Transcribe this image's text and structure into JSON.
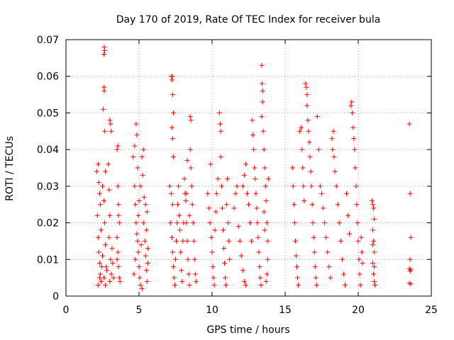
{
  "chart_data": {
    "type": "scatter",
    "title": "Day 170 of 2019, Rate Of TEC Index for receiver bula",
    "xlabel": "GPS time / hours",
    "ylabel": "ROTI / TECUs",
    "xlim": [
      0,
      25
    ],
    "ylim": [
      0,
      0.07
    ],
    "xticks": [
      0,
      5,
      10,
      15,
      20,
      25
    ],
    "xtick_labels": [
      "0",
      "5",
      "10",
      "15",
      "20",
      "25"
    ],
    "yticks": [
      0,
      0.01,
      0.02,
      0.03,
      0.04,
      0.05,
      0.06,
      0.07
    ],
    "ytick_labels": [
      "0",
      "0.01",
      "0.02",
      "0.03",
      "0.04",
      "0.05",
      "0.06",
      "0.07"
    ],
    "grid": true,
    "marker": "+",
    "series": [
      {
        "name": "ROTI",
        "color": "#ff0000",
        "points": [
          [
            2.1,
            0.034
          ],
          [
            2.2,
            0.036
          ],
          [
            2.25,
            0.031
          ],
          [
            2.3,
            0.028
          ],
          [
            2.15,
            0.022
          ],
          [
            2.2,
            0.016
          ],
          [
            2.25,
            0.012
          ],
          [
            2.3,
            0.009
          ],
          [
            2.35,
            0.006
          ],
          [
            2.4,
            0.004
          ],
          [
            2.2,
            0.003
          ],
          [
            2.3,
            0.005
          ],
          [
            2.45,
            0.008
          ],
          [
            2.5,
            0.011
          ],
          [
            2.4,
            0.018
          ],
          [
            2.35,
            0.025
          ],
          [
            2.5,
            0.03
          ],
          [
            2.6,
            0.066
          ],
          [
            2.62,
            0.068
          ],
          [
            2.65,
            0.067
          ],
          [
            2.6,
            0.057
          ],
          [
            2.62,
            0.056
          ],
          [
            2.55,
            0.051
          ],
          [
            2.65,
            0.045
          ],
          [
            2.7,
            0.034
          ],
          [
            2.6,
            0.026
          ],
          [
            2.65,
            0.02
          ],
          [
            2.7,
            0.014
          ],
          [
            2.75,
            0.008
          ],
          [
            2.6,
            0.005
          ],
          [
            2.7,
            0.003
          ],
          [
            2.8,
            0.007
          ],
          [
            2.9,
            0.036
          ],
          [
            2.95,
            0.029
          ],
          [
            3.0,
            0.048
          ],
          [
            3.05,
            0.047
          ],
          [
            3.1,
            0.045
          ],
          [
            3.0,
            0.022
          ],
          [
            2.95,
            0.016
          ],
          [
            3.05,
            0.01
          ],
          [
            3.1,
            0.006
          ],
          [
            3.0,
            0.004
          ],
          [
            3.15,
            0.013
          ],
          [
            3.2,
            0.009
          ],
          [
            3.25,
            0.005
          ],
          [
            3.5,
            0.04
          ],
          [
            3.55,
            0.041
          ],
          [
            3.55,
            0.03
          ],
          [
            3.6,
            0.025
          ],
          [
            3.65,
            0.02
          ],
          [
            3.5,
            0.016
          ],
          [
            3.55,
            0.012
          ],
          [
            3.6,
            0.008
          ],
          [
            3.65,
            0.005
          ],
          [
            3.7,
            0.004
          ],
          [
            3.6,
            0.022
          ],
          [
            3.5,
            0.01
          ],
          [
            4.6,
            0.038
          ],
          [
            4.7,
            0.041
          ],
          [
            4.8,
            0.047
          ],
          [
            4.85,
            0.044
          ],
          [
            4.9,
            0.035
          ],
          [
            4.7,
            0.03
          ],
          [
            4.75,
            0.025
          ],
          [
            4.8,
            0.02
          ],
          [
            4.9,
            0.015
          ],
          [
            4.95,
            0.012
          ],
          [
            5.0,
            0.008
          ],
          [
            5.05,
            0.005
          ],
          [
            5.1,
            0.003
          ],
          [
            4.65,
            0.006
          ],
          [
            4.75,
            0.01
          ],
          [
            4.85,
            0.017
          ],
          [
            4.95,
            0.022
          ],
          [
            5.0,
            0.026
          ],
          [
            5.1,
            0.03
          ],
          [
            5.2,
            0.038
          ],
          [
            5.3,
            0.04
          ],
          [
            5.25,
            0.033
          ],
          [
            5.35,
            0.027
          ],
          [
            5.3,
            0.02
          ],
          [
            5.4,
            0.015
          ],
          [
            5.45,
            0.011
          ],
          [
            5.5,
            0.007
          ],
          [
            5.55,
            0.004
          ],
          [
            5.6,
            0.009
          ],
          [
            5.5,
            0.018
          ],
          [
            5.55,
            0.023
          ],
          [
            5.6,
            0.013
          ],
          [
            5.45,
            0.025
          ],
          [
            5.15,
            0.014
          ],
          [
            5.2,
            0.002
          ],
          [
            7.1,
            0.03
          ],
          [
            7.2,
            0.06
          ],
          [
            7.25,
            0.059
          ],
          [
            7.3,
            0.06
          ],
          [
            7.3,
            0.055
          ],
          [
            7.35,
            0.05
          ],
          [
            7.25,
            0.046
          ],
          [
            7.3,
            0.043
          ],
          [
            7.35,
            0.038
          ],
          [
            7.2,
            0.028
          ],
          [
            7.3,
            0.025
          ],
          [
            7.15,
            0.02
          ],
          [
            7.25,
            0.016
          ],
          [
            7.3,
            0.012
          ],
          [
            7.35,
            0.008
          ],
          [
            7.4,
            0.005
          ],
          [
            7.45,
            0.003
          ],
          [
            7.5,
            0.01
          ],
          [
            7.55,
            0.015
          ],
          [
            7.6,
            0.02
          ],
          [
            7.65,
            0.025
          ],
          [
            7.7,
            0.03
          ],
          [
            7.75,
            0.022
          ],
          [
            7.8,
            0.018
          ],
          [
            7.85,
            0.012
          ],
          [
            7.9,
            0.007
          ],
          [
            7.95,
            0.004
          ],
          [
            8.0,
            0.015
          ],
          [
            8.05,
            0.02
          ],
          [
            8.1,
            0.032
          ],
          [
            8.15,
            0.028
          ],
          [
            8.2,
            0.026
          ],
          [
            8.25,
            0.02
          ],
          [
            8.3,
            0.015
          ],
          [
            8.35,
            0.01
          ],
          [
            8.4,
            0.006
          ],
          [
            8.45,
            0.003
          ],
          [
            8.5,
            0.049
          ],
          [
            8.55,
            0.048
          ],
          [
            8.5,
            0.04
          ],
          [
            8.55,
            0.035
          ],
          [
            8.6,
            0.03
          ],
          [
            8.65,
            0.025
          ],
          [
            8.7,
            0.02
          ],
          [
            8.75,
            0.015
          ],
          [
            8.8,
            0.01
          ],
          [
            8.85,
            0.006
          ],
          [
            8.9,
            0.004
          ],
          [
            8.3,
            0.037
          ],
          [
            8.25,
            0.028
          ],
          [
            8.45,
            0.022
          ],
          [
            9.7,
            0.028
          ],
          [
            9.8,
            0.024
          ],
          [
            9.85,
            0.02
          ],
          [
            9.9,
            0.036
          ],
          [
            9.95,
            0.016
          ],
          [
            10.0,
            0.012
          ],
          [
            10.05,
            0.008
          ],
          [
            10.1,
            0.005
          ],
          [
            10.15,
            0.003
          ],
          [
            10.2,
            0.018
          ],
          [
            10.25,
            0.023
          ],
          [
            10.3,
            0.028
          ],
          [
            10.4,
            0.032
          ],
          [
            10.5,
            0.05
          ],
          [
            10.55,
            0.047
          ],
          [
            10.6,
            0.045
          ],
          [
            10.6,
            0.038
          ],
          [
            10.65,
            0.03
          ],
          [
            10.7,
            0.024
          ],
          [
            10.75,
            0.018
          ],
          [
            10.8,
            0.013
          ],
          [
            10.85,
            0.009
          ],
          [
            10.9,
            0.005
          ],
          [
            10.95,
            0.003
          ],
          [
            11.0,
            0.025
          ],
          [
            11.05,
            0.032
          ],
          [
            11.1,
            0.02
          ],
          [
            11.15,
            0.015
          ],
          [
            11.2,
            0.01
          ],
          [
            11.5,
            0.024
          ],
          [
            11.6,
            0.028
          ],
          [
            11.7,
            0.03
          ],
          [
            11.8,
            0.019
          ],
          [
            11.9,
            0.015
          ],
          [
            12.0,
            0.011
          ],
          [
            12.1,
            0.007
          ],
          [
            12.2,
            0.004
          ],
          [
            12.3,
            0.003
          ],
          [
            12.1,
            0.03
          ],
          [
            12.2,
            0.033
          ],
          [
            12.3,
            0.036
          ],
          [
            12.4,
            0.028
          ],
          [
            12.5,
            0.025
          ],
          [
            12.6,
            0.02
          ],
          [
            12.7,
            0.015
          ],
          [
            12.75,
            0.048
          ],
          [
            12.8,
            0.044
          ],
          [
            12.85,
            0.04
          ],
          [
            12.9,
            0.035
          ],
          [
            12.95,
            0.032
          ],
          [
            13.0,
            0.028
          ],
          [
            13.05,
            0.024
          ],
          [
            13.1,
            0.02
          ],
          [
            13.15,
            0.016
          ],
          [
            13.2,
            0.012
          ],
          [
            13.25,
            0.008
          ],
          [
            13.3,
            0.005
          ],
          [
            13.35,
            0.003
          ],
          [
            13.4,
            0.063
          ],
          [
            13.42,
            0.058
          ],
          [
            13.45,
            0.056
          ],
          [
            13.45,
            0.053
          ],
          [
            13.4,
            0.049
          ],
          [
            13.5,
            0.045
          ],
          [
            13.55,
            0.04
          ],
          [
            13.6,
            0.035
          ],
          [
            13.65,
            0.03
          ],
          [
            13.7,
            0.026
          ],
          [
            13.75,
            0.02
          ],
          [
            13.8,
            0.015
          ],
          [
            13.8,
            0.01
          ],
          [
            13.75,
            0.006
          ],
          [
            13.7,
            0.004
          ],
          [
            13.6,
            0.018
          ],
          [
            13.55,
            0.023
          ],
          [
            13.85,
            0.032
          ],
          [
            15.5,
            0.035
          ],
          [
            15.55,
            0.03
          ],
          [
            15.6,
            0.025
          ],
          [
            15.65,
            0.02
          ],
          [
            15.7,
            0.015
          ],
          [
            15.75,
            0.011
          ],
          [
            15.8,
            0.008
          ],
          [
            15.85,
            0.005
          ],
          [
            15.9,
            0.003
          ],
          [
            16.0,
            0.045
          ],
          [
            16.1,
            0.046
          ],
          [
            16.15,
            0.04
          ],
          [
            16.2,
            0.035
          ],
          [
            16.25,
            0.03
          ],
          [
            16.3,
            0.026
          ],
          [
            16.4,
            0.058
          ],
          [
            16.45,
            0.057
          ],
          [
            16.5,
            0.055
          ],
          [
            16.5,
            0.052
          ],
          [
            16.55,
            0.048
          ],
          [
            16.6,
            0.045
          ],
          [
            16.65,
            0.042
          ],
          [
            16.7,
            0.038
          ],
          [
            16.75,
            0.034
          ],
          [
            16.8,
            0.03
          ],
          [
            16.85,
            0.025
          ],
          [
            16.9,
            0.02
          ],
          [
            16.95,
            0.016
          ],
          [
            17.0,
            0.012
          ],
          [
            17.05,
            0.008
          ],
          [
            17.1,
            0.005
          ],
          [
            17.15,
            0.003
          ],
          [
            17.2,
            0.049
          ],
          [
            17.3,
            0.04
          ],
          [
            17.4,
            0.03
          ],
          [
            17.5,
            0.028
          ],
          [
            17.6,
            0.024
          ],
          [
            17.7,
            0.02
          ],
          [
            17.8,
            0.016
          ],
          [
            17.9,
            0.012
          ],
          [
            18.0,
            0.008
          ],
          [
            18.1,
            0.005
          ],
          [
            18.2,
            0.043
          ],
          [
            18.25,
            0.04
          ],
          [
            18.3,
            0.045
          ],
          [
            18.35,
            0.038
          ],
          [
            18.4,
            0.034
          ],
          [
            18.5,
            0.03
          ],
          [
            18.6,
            0.025
          ],
          [
            18.7,
            0.02
          ],
          [
            18.8,
            0.015
          ],
          [
            18.9,
            0.01
          ],
          [
            19.0,
            0.006
          ],
          [
            19.1,
            0.003
          ],
          [
            19.2,
            0.028
          ],
          [
            19.3,
            0.022
          ],
          [
            19.4,
            0.017
          ],
          [
            19.5,
            0.052
          ],
          [
            19.55,
            0.053
          ],
          [
            19.6,
            0.05
          ],
          [
            19.65,
            0.046
          ],
          [
            19.7,
            0.043
          ],
          [
            19.75,
            0.04
          ],
          [
            19.8,
            0.035
          ],
          [
            19.85,
            0.03
          ],
          [
            19.9,
            0.025
          ],
          [
            19.95,
            0.02
          ],
          [
            20.0,
            0.015
          ],
          [
            20.05,
            0.01
          ],
          [
            20.1,
            0.006
          ],
          [
            20.15,
            0.003
          ],
          [
            20.2,
            0.016
          ],
          [
            20.25,
            0.012
          ],
          [
            20.3,
            0.009
          ],
          [
            20.95,
            0.026
          ],
          [
            21.0,
            0.025
          ],
          [
            21.05,
            0.024
          ],
          [
            21.1,
            0.021
          ],
          [
            21.0,
            0.018
          ],
          [
            21.05,
            0.015
          ],
          [
            21.1,
            0.012
          ],
          [
            21.0,
            0.009
          ],
          [
            21.05,
            0.006
          ],
          [
            21.1,
            0.004
          ],
          [
            21.15,
            0.003
          ],
          [
            21.0,
            0.014
          ],
          [
            21.1,
            0.008
          ],
          [
            23.5,
            0.047
          ],
          [
            23.55,
            0.028
          ],
          [
            23.6,
            0.016
          ],
          [
            23.55,
            0.01
          ],
          [
            23.5,
            0.0075
          ],
          [
            23.6,
            0.0072
          ],
          [
            23.55,
            0.0068
          ],
          [
            23.5,
            0.0035
          ],
          [
            23.6,
            0.0033
          ]
        ]
      }
    ]
  }
}
